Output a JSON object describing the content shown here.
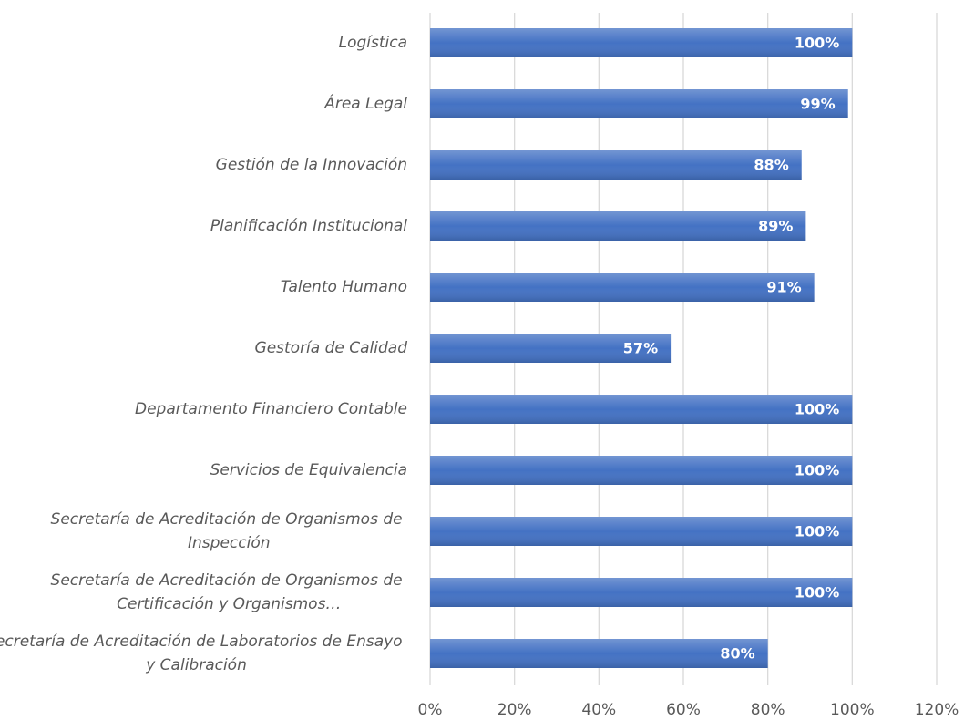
{
  "chart_data": {
    "type": "barh",
    "categories": [
      "Logística",
      "Área Legal",
      "Gestión de la Innovación",
      "Planificación Institucional",
      "Talento Humano",
      "Gestoría de Calidad",
      "Departamento Financiero Contable",
      "Servicios de Equivalencia",
      "Secretaría de Acreditación de Organismos de Inspección",
      "Secretaría de Acreditación de Organismos de Certificación y Organismos…",
      "Secretaría de Acreditación de Laboratorios de Ensayo y Calibración"
    ],
    "values": [
      100,
      99,
      88,
      89,
      91,
      57,
      100,
      100,
      100,
      100,
      80
    ],
    "value_labels": [
      "100%",
      "99%",
      "88%",
      "89%",
      "91%",
      "57%",
      "100%",
      "100%",
      "100%",
      "100%",
      "80%"
    ],
    "color": "#4472c4",
    "xlim": [
      0,
      120
    ],
    "xticks": [
      {
        "value": 0,
        "label": "0%"
      },
      {
        "value": 20,
        "label": "20%"
      },
      {
        "value": 40,
        "label": "40%"
      },
      {
        "value": 60,
        "label": "60%"
      },
      {
        "value": 80,
        "label": "80%"
      },
      {
        "value": 100,
        "label": "100%"
      },
      {
        "value": 120,
        "label": "120%"
      }
    ],
    "grid": true
  }
}
